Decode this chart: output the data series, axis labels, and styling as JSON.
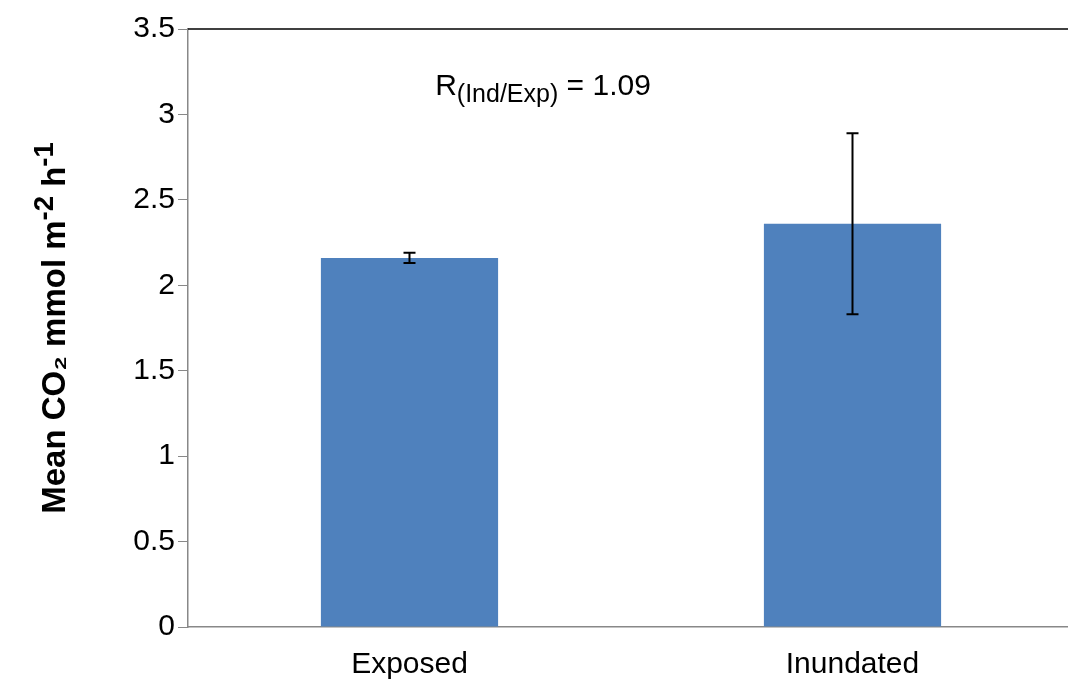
{
  "chart_data": {
    "type": "bar",
    "ylabel": "Mean CO₂ mmol m$^{-2}$ h$^{-1}$",
    "categories": [
      "Exposed",
      "Inundated"
    ],
    "values": [
      2.16,
      2.36
    ],
    "errors": [
      0.03,
      0.53
    ],
    "color": "#4f81bd",
    "ylim": [
      0,
      3.5
    ],
    "yticks": [
      0,
      0.5,
      1,
      1.5,
      2,
      2.5,
      3,
      3.5
    ],
    "grid": false,
    "legend": false,
    "annotations": [
      "R$_{(Ind/Exp)}$ = 1.09"
    ]
  }
}
